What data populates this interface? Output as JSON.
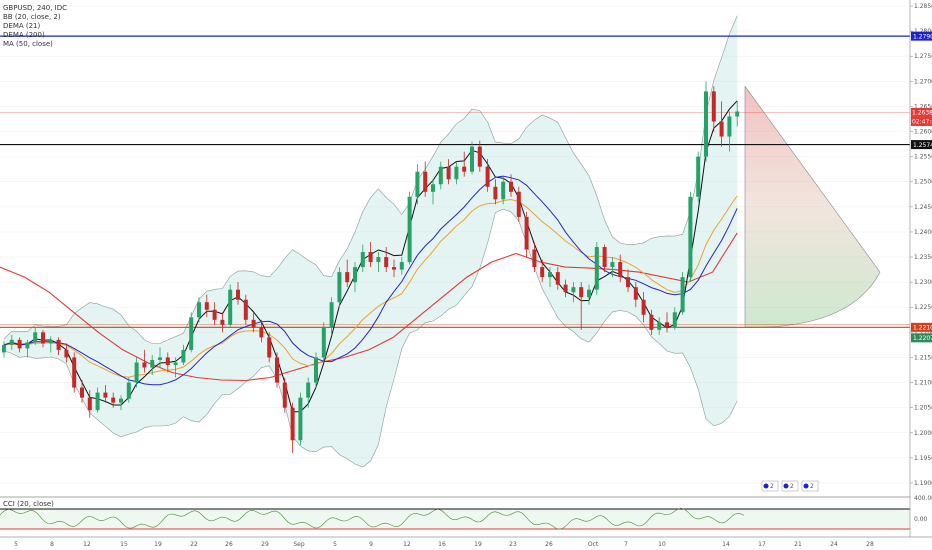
{
  "chart_data": {
    "type": "line",
    "title": "GBPUSD, 240, IDC",
    "legend": [
      "BB (20, close, 2)",
      "DEMA (21)",
      "DEMA (200)",
      "MA (50, close)"
    ],
    "legend_placement": "top-left",
    "price_axis": {
      "ticks": [
        "1.2850",
        "1.2800",
        "1.2750",
        "1.2700",
        "1.2650",
        "1.2600",
        "1.2550",
        "1.2500",
        "1.2450",
        "1.2400",
        "1.2350",
        "1.2300",
        "1.2250",
        "1.2200",
        "1.2150",
        "1.2100",
        "1.2050",
        "1.2000",
        "1.1950",
        "1.1900"
      ],
      "ylim": [
        1.188,
        1.2862
      ]
    },
    "date_axis": {
      "ticks": [
        "5",
        "8",
        "12",
        "15",
        "19",
        "22",
        "26",
        "29",
        "Sep",
        "5",
        "9",
        "12",
        "16",
        "19",
        "23",
        "26",
        "Oct",
        "7",
        "10",
        "14",
        "17",
        "21",
        "24",
        "28"
      ]
    },
    "levels": [
      {
        "price": 1.279,
        "label": "1.2790",
        "color": "#1e22c8"
      },
      {
        "price": 1.2574,
        "label": "1.2574",
        "color": "#111111"
      },
      {
        "price": 1.221,
        "label": "1.2210",
        "color": "#d0421b"
      },
      {
        "price": 1.2207,
        "label": "1.2207",
        "color": "#2e8b57"
      }
    ],
    "price_tags": [
      {
        "label": "1.2638",
        "color": "#e53935"
      },
      {
        "label": "02:47:02",
        "color": "#e53935"
      }
    ],
    "candles": [
      [
        1.216,
        1.2182,
        1.215,
        1.2175
      ],
      [
        1.2175,
        1.2195,
        1.2165,
        1.2185
      ],
      [
        1.2185,
        1.219,
        1.216,
        1.2168
      ],
      [
        1.2168,
        1.2185,
        1.215,
        1.218
      ],
      [
        1.218,
        1.221,
        1.2175,
        1.22
      ],
      [
        1.22,
        1.2205,
        1.217,
        1.2178
      ],
      [
        1.2178,
        1.2192,
        1.216,
        1.2185
      ],
      [
        1.2185,
        1.219,
        1.2155,
        1.2165
      ],
      [
        1.2165,
        1.2178,
        1.214,
        1.215
      ],
      [
        1.215,
        1.216,
        1.208,
        1.209
      ],
      [
        1.209,
        1.2105,
        1.206,
        1.207
      ],
      [
        1.207,
        1.2085,
        1.203,
        1.2045
      ],
      [
        1.2045,
        1.209,
        1.204,
        1.208
      ],
      [
        1.208,
        1.2095,
        1.206,
        1.207
      ],
      [
        1.207,
        1.208,
        1.205,
        1.206
      ],
      [
        1.206,
        1.2075,
        1.2045,
        1.2068
      ],
      [
        1.2068,
        1.211,
        1.206,
        1.21
      ],
      [
        1.21,
        1.215,
        1.209,
        1.214
      ],
      [
        1.214,
        1.2165,
        1.212,
        1.213
      ],
      [
        1.213,
        1.2155,
        1.2115,
        1.2145
      ],
      [
        1.2145,
        1.217,
        1.213,
        1.215
      ],
      [
        1.215,
        1.216,
        1.212,
        1.2135
      ],
      [
        1.2135,
        1.215,
        1.211,
        1.214
      ],
      [
        1.214,
        1.2175,
        1.2135,
        1.2165
      ],
      [
        1.2165,
        1.224,
        1.216,
        1.223
      ],
      [
        1.223,
        1.227,
        1.222,
        1.226
      ],
      [
        1.226,
        1.2275,
        1.223,
        1.2245
      ],
      [
        1.2245,
        1.226,
        1.2215,
        1.2225
      ],
      [
        1.2225,
        1.224,
        1.22,
        1.2215
      ],
      [
        1.2215,
        1.2295,
        1.221,
        1.2285
      ],
      [
        1.2285,
        1.23,
        1.2255,
        1.2265
      ],
      [
        1.2265,
        1.2275,
        1.2215,
        1.2225
      ],
      [
        1.2225,
        1.224,
        1.22,
        1.221
      ],
      [
        1.221,
        1.2225,
        1.218,
        1.219
      ],
      [
        1.219,
        1.22,
        1.214,
        1.215
      ],
      [
        1.215,
        1.216,
        1.209,
        1.21
      ],
      [
        1.21,
        1.211,
        1.204,
        1.205
      ],
      [
        1.205,
        1.206,
        1.196,
        1.1985
      ],
      [
        1.1985,
        1.208,
        1.1975,
        1.207
      ],
      [
        1.207,
        1.211,
        1.205,
        1.21
      ],
      [
        1.21,
        1.216,
        1.209,
        1.215
      ],
      [
        1.215,
        1.222,
        1.214,
        1.221
      ],
      [
        1.221,
        1.227,
        1.2195,
        1.226
      ],
      [
        1.226,
        1.233,
        1.225,
        1.232
      ],
      [
        1.232,
        1.2345,
        1.229,
        1.23
      ],
      [
        1.23,
        1.234,
        1.228,
        1.233
      ],
      [
        1.233,
        1.2375,
        1.232,
        1.236
      ],
      [
        1.236,
        1.238,
        1.233,
        1.234
      ],
      [
        1.234,
        1.236,
        1.232,
        1.235
      ],
      [
        1.235,
        1.237,
        1.232,
        1.233
      ],
      [
        1.233,
        1.2345,
        1.231,
        1.2325
      ],
      [
        1.2325,
        1.235,
        1.2315,
        1.234
      ],
      [
        1.234,
        1.248,
        1.2335,
        1.247
      ],
      [
        1.247,
        1.2535,
        1.2455,
        1.252
      ],
      [
        1.252,
        1.254,
        1.247,
        1.248
      ],
      [
        1.248,
        1.2505,
        1.2455,
        1.2495
      ],
      [
        1.2495,
        1.254,
        1.2485,
        1.253
      ],
      [
        1.253,
        1.2545,
        1.2495,
        1.2505
      ],
      [
        1.2505,
        1.254,
        1.2495,
        1.253
      ],
      [
        1.253,
        1.256,
        1.251,
        1.252
      ],
      [
        1.252,
        1.258,
        1.2515,
        1.257
      ],
      [
        1.257,
        1.2582,
        1.252,
        1.253
      ],
      [
        1.253,
        1.2545,
        1.248,
        1.249
      ],
      [
        1.249,
        1.2505,
        1.2455,
        1.2465
      ],
      [
        1.2465,
        1.251,
        1.2455,
        1.25
      ],
      [
        1.25,
        1.2515,
        1.247,
        1.248
      ],
      [
        1.248,
        1.249,
        1.242,
        1.243
      ],
      [
        1.243,
        1.244,
        1.235,
        1.2365
      ],
      [
        1.2365,
        1.238,
        1.232,
        1.233
      ],
      [
        1.233,
        1.2345,
        1.23,
        1.231
      ],
      [
        1.231,
        1.233,
        1.229,
        1.232
      ],
      [
        1.232,
        1.233,
        1.2285,
        1.2295
      ],
      [
        1.2295,
        1.2305,
        1.227,
        1.228
      ],
      [
        1.228,
        1.23,
        1.226,
        1.229
      ],
      [
        1.229,
        1.23,
        1.2205,
        1.227
      ],
      [
        1.227,
        1.2295,
        1.2255,
        1.2285
      ],
      [
        1.2285,
        1.238,
        1.2275,
        1.237
      ],
      [
        1.237,
        1.2375,
        1.232,
        1.233
      ],
      [
        1.233,
        1.235,
        1.231,
        1.234
      ],
      [
        1.234,
        1.2355,
        1.23,
        1.231
      ],
      [
        1.231,
        1.2325,
        1.228,
        1.229
      ],
      [
        1.229,
        1.23,
        1.225,
        1.2265
      ],
      [
        1.2265,
        1.228,
        1.222,
        1.2235
      ],
      [
        1.2235,
        1.2245,
        1.2195,
        1.2205
      ],
      [
        1.2205,
        1.223,
        1.2195,
        1.222
      ],
      [
        1.222,
        1.224,
        1.22,
        1.221
      ],
      [
        1.221,
        1.225,
        1.2205,
        1.224
      ],
      [
        1.224,
        1.232,
        1.2235,
        1.231
      ],
      [
        1.231,
        1.248,
        1.23,
        1.247
      ],
      [
        1.247,
        1.256,
        1.246,
        1.255
      ],
      [
        1.255,
        1.27,
        1.254,
        1.268
      ],
      [
        1.268,
        1.269,
        1.26,
        1.262
      ],
      [
        1.262,
        1.266,
        1.257,
        1.259
      ],
      [
        1.259,
        1.264,
        1.256,
        1.263
      ],
      [
        1.263,
        1.266,
        1.261,
        1.264
      ]
    ]
  },
  "cci_panel": {
    "title": "CCI (20, close)",
    "ticks": [
      "400.00",
      "0.00"
    ]
  },
  "event_flags": [
    "2",
    "2",
    "2"
  ]
}
